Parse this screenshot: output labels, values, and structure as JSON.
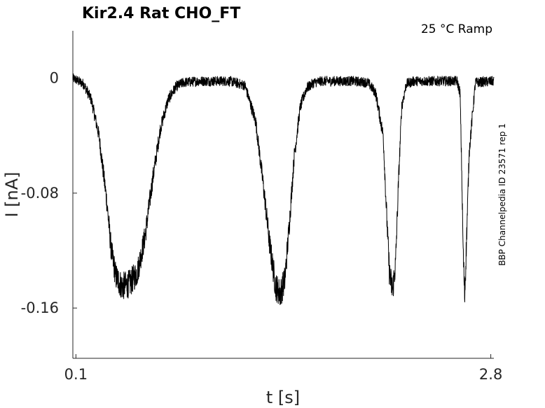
{
  "chart_data": {
    "type": "line",
    "title": "Kir2.4  Rat  CHO_FT",
    "annotation": "25 °C  Ramp",
    "side_label": "BBP Channelpedia ID 23571 rep 1",
    "xlabel": "t [s]",
    "ylabel": "I [nA]",
    "xlim": [
      0.08,
      2.82
    ],
    "ylim": [
      -0.195,
      0.033
    ],
    "xticks": [
      0.1,
      2.8
    ],
    "xtick_labels": [
      "0.1",
      "2.8"
    ],
    "yticks": [
      0,
      -0.08,
      -0.16
    ],
    "ytick_labels": [
      "0",
      "-0.08",
      "-0.16"
    ],
    "grid": false,
    "line_color": "#000000",
    "series": [
      {
        "x": [
          0.08,
          0.15,
          0.2,
          0.25,
          0.3,
          0.33,
          0.36,
          0.4,
          0.45,
          0.5,
          0.55,
          0.6,
          0.65,
          0.7,
          0.75,
          0.8,
          0.9,
          1.0,
          1.1,
          1.2,
          1.27,
          1.32,
          1.36,
          1.4,
          1.43,
          1.46,
          1.49,
          1.52,
          1.56,
          1.6,
          1.65,
          1.7,
          1.8,
          1.9,
          2.0,
          2.05,
          2.1,
          2.12,
          2.14,
          2.16,
          2.18,
          2.2,
          2.22,
          2.25,
          2.3,
          2.4,
          2.5,
          2.58,
          2.6,
          2.61,
          2.62,
          2.63,
          2.64,
          2.66,
          2.7,
          2.82
        ],
        "y": [
          0,
          -0.004,
          -0.015,
          -0.04,
          -0.085,
          -0.12,
          -0.138,
          -0.145,
          -0.143,
          -0.135,
          -0.11,
          -0.07,
          -0.035,
          -0.015,
          -0.006,
          -0.003,
          -0.002,
          -0.002,
          -0.002,
          -0.005,
          -0.03,
          -0.075,
          -0.115,
          -0.145,
          -0.15,
          -0.14,
          -0.1,
          -0.055,
          -0.02,
          -0.007,
          -0.003,
          -0.002,
          -0.002,
          -0.002,
          -0.003,
          -0.01,
          -0.04,
          -0.09,
          -0.135,
          -0.148,
          -0.13,
          -0.07,
          -0.02,
          -0.004,
          -0.002,
          -0.002,
          -0.002,
          -0.002,
          -0.01,
          -0.06,
          -0.12,
          -0.152,
          -0.12,
          -0.05,
          -0.003,
          -0.002
        ]
      }
    ]
  }
}
